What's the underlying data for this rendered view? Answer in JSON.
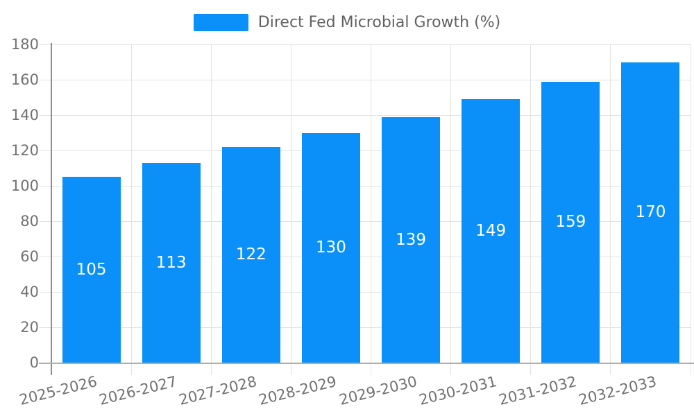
{
  "legend": {
    "label": "Direct Fed Microbial Growth (%)"
  },
  "colors": {
    "bar": "#0a90f8",
    "grid": "#e2e2e2",
    "y_axis": "#8f8f8f",
    "x_axis": "#adadad",
    "tick_label": "#717171",
    "legend_text": "#616161",
    "value_label": "#ffffff",
    "background": "#ffffff"
  },
  "chart_data": {
    "type": "bar",
    "title": "",
    "xlabel": "",
    "ylabel": "",
    "categories": [
      "2025-2026",
      "2026-2027",
      "2027-2028",
      "2028-2029",
      "2029-2030",
      "2030-2031",
      "2031-2032",
      "2032-2033"
    ],
    "series": [
      {
        "name": "Direct Fed Microbial Growth (%)",
        "values": [
          105,
          113,
          122,
          130,
          139,
          149,
          159,
          170
        ]
      }
    ],
    "ylim": [
      0,
      180
    ],
    "ytick_step": 20,
    "yticks": [
      0,
      20,
      40,
      60,
      80,
      100,
      120,
      140,
      160,
      180
    ],
    "grid": true,
    "legend_position": "top-center",
    "value_labels": "inside-center"
  }
}
